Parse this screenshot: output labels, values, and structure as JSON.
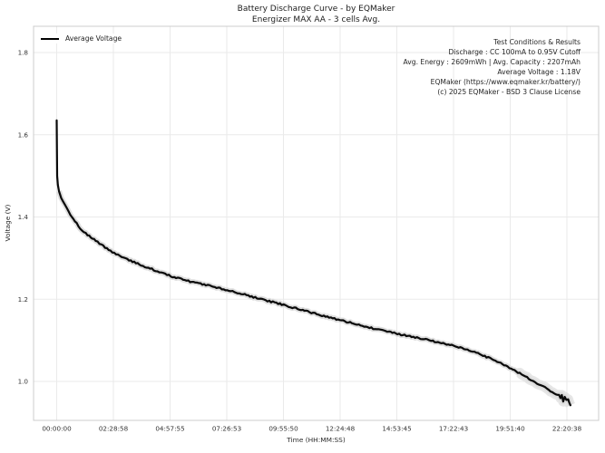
{
  "header": {
    "title": "Battery Discharge Curve - by EQMaker",
    "subtitle": "Energizer MAX AA - 3 cells Avg."
  },
  "legend": {
    "items": [
      {
        "label": "Average Voltage",
        "color": "#000000"
      }
    ]
  },
  "annotation": {
    "lines": [
      "Test Conditions & Results",
      "Discharge : CC 100mA to 0.95V Cutoff",
      "Avg. Energy : 2609mWh | Avg. Capacity : 2207mAh",
      "Average Voltage : 1.18V",
      "EQMaker (https://www.eqmaker.kr/battery/)",
      "(c) 2025 EQMaker - BSD 3 Clause License"
    ]
  },
  "colors": {
    "curve": "#0a0a0a",
    "band": "#d9d9d9",
    "band_tail": "#e0e0e0",
    "grid": "#eaeaea",
    "frame": "#cccccc",
    "background": "#ffffff",
    "text": "#333333"
  },
  "chart_data": {
    "type": "line",
    "title": "Battery Discharge Curve - by EQMaker",
    "subtitle": "Energizer MAX AA - 3 cells Avg.",
    "xlabel": "Time (HH:MM:SS)",
    "ylabel": "Voltage (V)",
    "grid": true,
    "legend_position": "upper left",
    "x_unit": "hours",
    "xlim": [
      -0.95,
      23.75
    ],
    "ylim": [
      0.91,
      1.86
    ],
    "x_ticks": [
      "00:00:00",
      "02:28:58",
      "04:57:55",
      "07:26:53",
      "09:55:50",
      "12:24:48",
      "14:53:45",
      "17:22:43",
      "19:51:40",
      "22:20:38"
    ],
    "x_tick_hours": [
      0,
      2.48278,
      4.96528,
      7.44806,
      9.93056,
      12.41333,
      14.89583,
      17.37861,
      19.86111,
      22.34389
    ],
    "y_ticks": [
      "1.8",
      "1.6",
      "1.4",
      "1.2",
      "1.0"
    ],
    "y_tick_values": [
      1.8,
      1.6,
      1.4,
      1.2,
      1.0
    ],
    "series": [
      {
        "name": "Average Voltage",
        "color": "#0a0a0a",
        "band_color": "#d9d9d9",
        "points": [
          [
            0.0,
            1.635
          ],
          [
            0.02,
            1.5
          ],
          [
            0.05,
            1.478
          ],
          [
            0.1,
            1.463
          ],
          [
            0.2,
            1.446
          ],
          [
            0.36,
            1.43
          ],
          [
            0.6,
            1.406
          ],
          [
            0.8,
            1.39
          ],
          [
            1.03,
            1.372
          ],
          [
            1.35,
            1.357
          ],
          [
            1.71,
            1.342
          ],
          [
            2.2,
            1.323
          ],
          [
            2.6,
            1.31
          ],
          [
            3.02,
            1.298
          ],
          [
            3.7,
            1.283
          ],
          [
            4.33,
            1.27
          ],
          [
            5.0,
            1.256
          ],
          [
            5.69,
            1.245
          ],
          [
            6.3,
            1.237
          ],
          [
            7.0,
            1.229
          ],
          [
            7.7,
            1.219
          ],
          [
            8.31,
            1.21
          ],
          [
            9.0,
            1.199
          ],
          [
            9.7,
            1.19
          ],
          [
            10.4,
            1.179
          ],
          [
            11.0,
            1.17
          ],
          [
            11.7,
            1.159
          ],
          [
            12.4,
            1.149
          ],
          [
            13.0,
            1.141
          ],
          [
            13.7,
            1.131
          ],
          [
            14.4,
            1.122
          ],
          [
            15.0,
            1.115
          ],
          [
            15.7,
            1.107
          ],
          [
            16.4,
            1.099
          ],
          [
            17.0,
            1.092
          ],
          [
            17.6,
            1.083
          ],
          [
            18.3,
            1.072
          ],
          [
            18.9,
            1.058
          ],
          [
            19.6,
            1.04
          ],
          [
            20.2,
            1.022
          ],
          [
            20.6,
            1.01
          ],
          [
            20.95,
            0.998
          ],
          [
            21.3,
            0.988
          ],
          [
            21.63,
            0.976
          ],
          [
            21.85,
            0.97
          ],
          [
            22.0,
            0.968
          ],
          [
            22.06,
            0.958
          ],
          [
            22.12,
            0.966
          ],
          [
            22.18,
            0.952
          ],
          [
            22.25,
            0.962
          ],
          [
            22.32,
            0.954
          ],
          [
            22.4,
            0.957
          ],
          [
            22.45,
            0.949
          ],
          [
            22.5,
            0.942
          ]
        ]
      }
    ]
  }
}
